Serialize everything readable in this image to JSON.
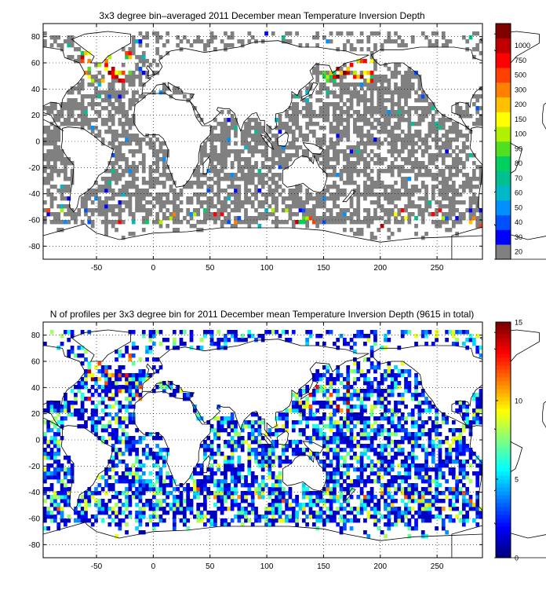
{
  "figure_title": "",
  "chart_data": [
    {
      "type": "heatmap",
      "title": "3x3 degree bin–averaged 2011 December mean Temperature Inversion Depth",
      "xlabel": "",
      "ylabel": "",
      "xlim": [
        -97,
        290
      ],
      "ylim": [
        -90,
        90
      ],
      "xticks": [
        -50,
        0,
        50,
        100,
        150,
        200,
        250
      ],
      "yticks": [
        80,
        60,
        40,
        20,
        0,
        -20,
        -40,
        -60,
        -80
      ],
      "grid": true,
      "bin_size_deg": 3,
      "colorbar": {
        "type": "discrete",
        "labels": [
          "20",
          "30",
          "40",
          "50",
          "60",
          "70",
          "80",
          "90",
          "100",
          "150",
          "200",
          "300",
          "500",
          "750",
          "1000"
        ],
        "colors": [
          "#808080",
          "#0000ff",
          "#0050ff",
          "#0090ff",
          "#00b8c8",
          "#00c090",
          "#00d060",
          "#50e020",
          "#b0f000",
          "#ffff00",
          "#ffc000",
          "#ff8000",
          "#ff4000",
          "#ff0000",
          "#c00000",
          "#800000"
        ]
      },
      "cells_note": "Mostly gray (<=20) bins across the open ocean; colored bins concentrated in the North Atlantic (60N, 50W) and North Pacific (55N, 170E), scattered blue bins near 60S."
    },
    {
      "type": "heatmap",
      "title": "N of profiles per 3x3 degree bin for 2011 December mean Temperature Inversion Depth  (9615 in total)",
      "xlabel": "",
      "ylabel": "",
      "xlim": [
        -97,
        290
      ],
      "ylim": [
        -90,
        90
      ],
      "xticks": [
        -50,
        0,
        50,
        100,
        150,
        200,
        250
      ],
      "yticks": [
        80,
        60,
        40,
        20,
        0,
        -20,
        -40,
        -60,
        -80
      ],
      "grid": true,
      "bin_size_deg": 3,
      "total_profiles": 9615,
      "colorbar": {
        "type": "continuous",
        "colormap": "jet",
        "range": [
          0,
          15
        ],
        "ticks": [
          0,
          5,
          10,
          15
        ]
      },
      "cells_note": "Most ocean bins hold 1–4 profiles (blue); higher counts (cyan to dark red) in the Kuroshio region, North Atlantic and Southern Ocean near 45S."
    }
  ],
  "colors": {
    "background": "#ffffff",
    "axes": "#000000",
    "land_fill": "#ffffff",
    "grid": "#000000"
  }
}
